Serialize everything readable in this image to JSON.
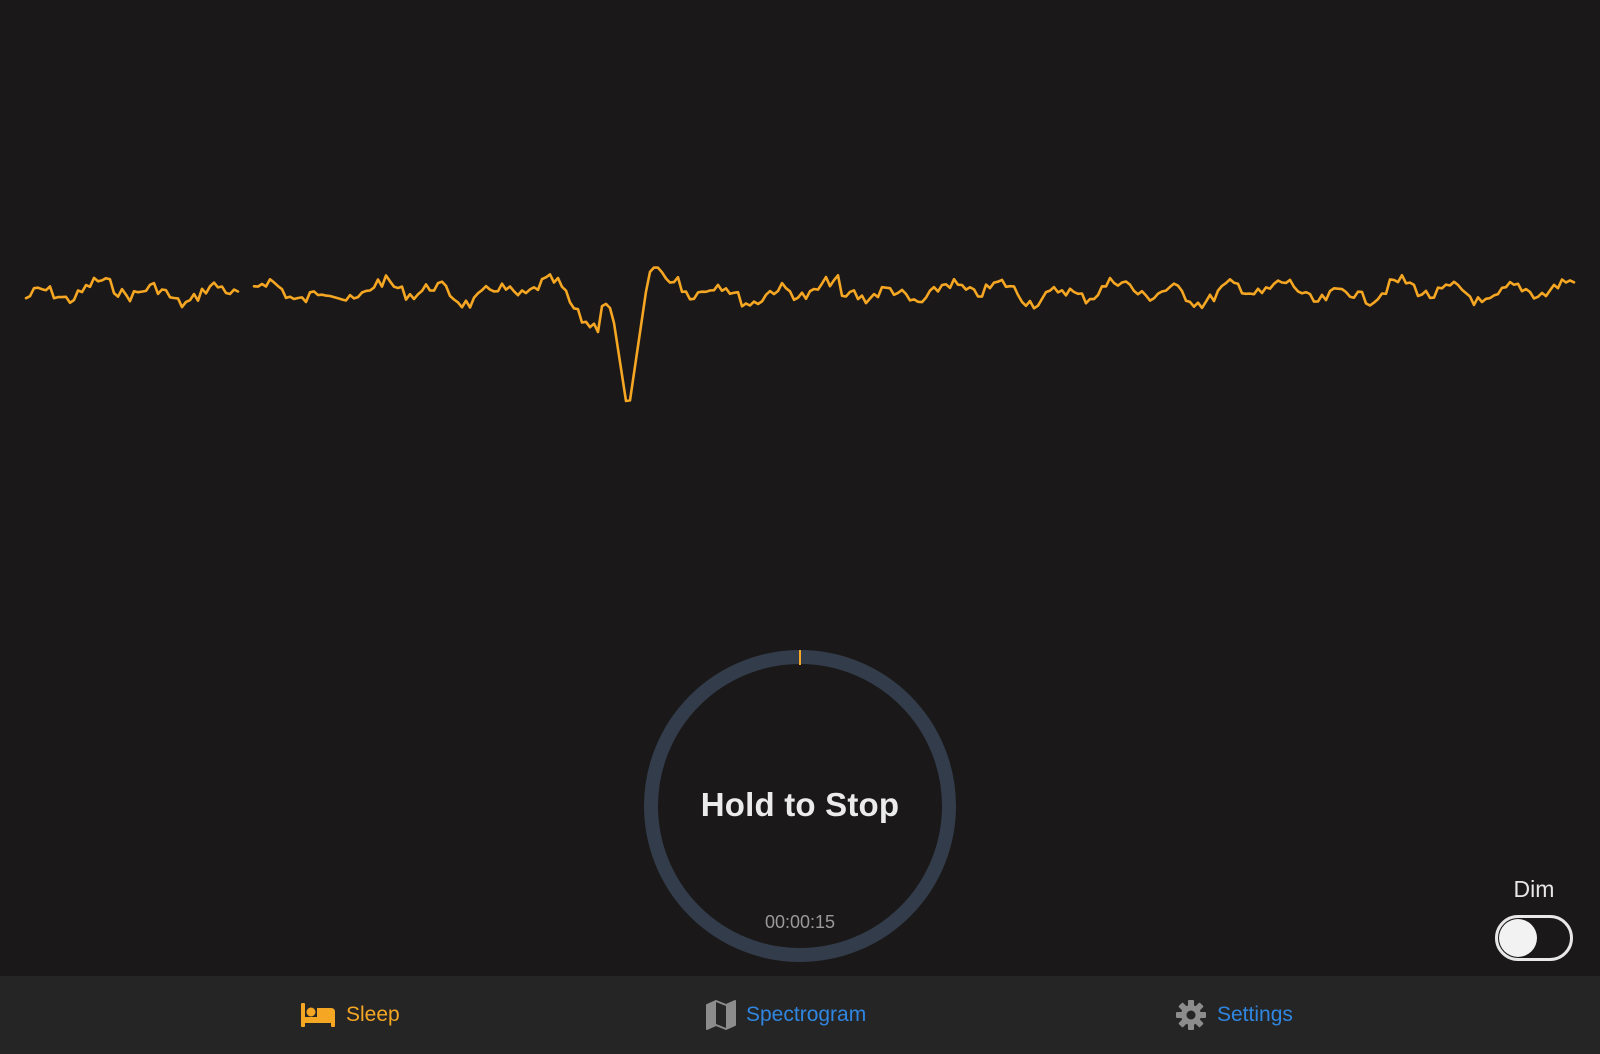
{
  "screen": {
    "background": "#1a1818",
    "waveform_color": "#f5a623",
    "ring_color": "#333c4a"
  },
  "hold_button": {
    "label": "Hold to Stop",
    "elapsed": "00:00:15",
    "progress": 0.0
  },
  "dim": {
    "label": "Dim",
    "on": false
  },
  "tabs": [
    {
      "label": "Sleep",
      "icon": "bed-icon",
      "active": true,
      "color": "#f5a623"
    },
    {
      "label": "Spectrogram",
      "icon": "map-icon",
      "active": false,
      "color": "#2f86e0"
    },
    {
      "label": "Settings",
      "icon": "gear-icon",
      "active": false,
      "color": "#2f86e0"
    }
  ]
}
